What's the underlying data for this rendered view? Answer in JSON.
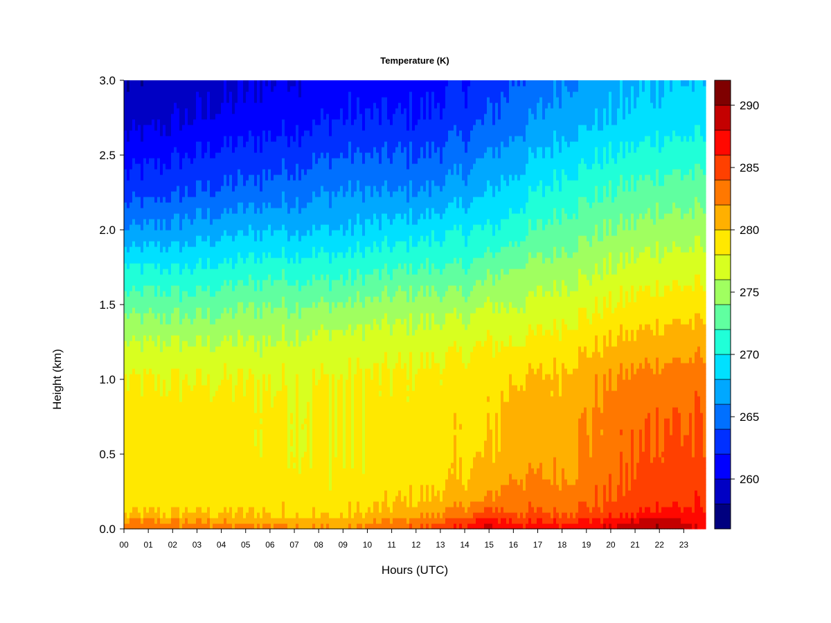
{
  "chart_data": {
    "type": "heatmap",
    "title": "Temperature (K)",
    "xlabel": "Hours (UTC)",
    "ylabel": "Height (km)",
    "xlim": [
      0,
      23.9
    ],
    "ylim": [
      0.0,
      3.0
    ],
    "x_ticks": [
      "00",
      "01",
      "02",
      "03",
      "04",
      "05",
      "06",
      "07",
      "08",
      "09",
      "10",
      "11",
      "12",
      "13",
      "14",
      "15",
      "16",
      "17",
      "18",
      "19",
      "20",
      "21",
      "22",
      "23"
    ],
    "y_ticks": [
      "0.0",
      "0.5",
      "1.0",
      "1.5",
      "2.0",
      "2.5",
      "3.0"
    ],
    "y_tick_values": [
      0.0,
      0.5,
      1.0,
      1.5,
      2.0,
      2.5,
      3.0
    ],
    "colorbar": {
      "label_values": [
        260,
        265,
        270,
        275,
        280,
        285,
        290
      ],
      "labels": [
        "260",
        "265",
        "270",
        "275",
        "280",
        "285",
        "290"
      ],
      "levels": [
        256,
        258,
        260,
        262,
        264,
        266,
        268,
        270,
        272,
        274,
        276,
        278,
        280,
        282,
        284,
        286,
        288,
        290,
        292
      ],
      "colors": [
        "#00007f",
        "#0000c4",
        "#0000ff",
        "#0030ff",
        "#0070ff",
        "#00a8ff",
        "#00e0ff",
        "#20ffd8",
        "#60ffa0",
        "#a0ff60",
        "#d8ff20",
        "#ffe800",
        "#ffb000",
        "#ff7800",
        "#ff4000",
        "#ff0800",
        "#c40000",
        "#7f0000"
      ]
    },
    "profiles": {
      "heights_km": [
        0.0,
        0.05,
        0.1,
        0.2,
        0.35,
        0.5,
        0.75,
        1.0,
        1.25,
        1.5,
        1.75,
        2.0,
        2.25,
        2.5,
        2.75,
        3.0
      ],
      "columns": [
        {
          "hour": 0,
          "temps": [
            283,
            282,
            280,
            279,
            279,
            279,
            279,
            278,
            276,
            273,
            270,
            266,
            263,
            261,
            259,
            258
          ]
        },
        {
          "hour": 3,
          "temps": [
            283,
            282,
            280,
            279,
            279,
            279,
            279,
            278,
            276,
            273,
            270,
            267,
            264,
            262,
            260,
            259
          ]
        },
        {
          "hour": 6,
          "temps": [
            283,
            281,
            280,
            279,
            279,
            278.5,
            278.5,
            278,
            276,
            274,
            271,
            268,
            265,
            263,
            261,
            260
          ]
        },
        {
          "hour": 9,
          "temps": [
            282,
            281,
            279.5,
            279,
            278.5,
            278,
            278,
            278,
            277,
            274,
            271,
            268,
            266,
            264,
            262,
            261
          ]
        },
        {
          "hour": 12,
          "temps": [
            284,
            283,
            281,
            280,
            279,
            279,
            279,
            278.5,
            277,
            275,
            272,
            269,
            266,
            264,
            262,
            261
          ]
        },
        {
          "hour": 14,
          "temps": [
            287,
            285,
            283,
            281,
            280,
            279.5,
            279.5,
            279,
            277.5,
            275,
            272,
            270,
            267,
            265,
            263,
            262
          ]
        },
        {
          "hour": 15,
          "temps": [
            289,
            287,
            285,
            282,
            281,
            280,
            279.5,
            279,
            278,
            276,
            273,
            270,
            268,
            266,
            264,
            263
          ]
        },
        {
          "hour": 16,
          "temps": [
            287,
            286,
            284,
            283,
            282,
            281,
            281,
            280,
            278,
            276,
            274,
            271,
            269,
            267,
            265,
            264
          ]
        },
        {
          "hour": 18,
          "temps": [
            287,
            286,
            284,
            283,
            282,
            281.5,
            281,
            280.5,
            279,
            277,
            275,
            273,
            271,
            269,
            267,
            266
          ]
        },
        {
          "hour": 20,
          "temps": [
            288,
            287,
            285,
            284,
            283.5,
            283,
            283,
            282,
            280,
            278,
            276,
            274,
            272,
            270,
            268,
            267
          ]
        },
        {
          "hour": 22,
          "temps": [
            291,
            289,
            287,
            285.5,
            285,
            284.5,
            284,
            283,
            281,
            279,
            277,
            275,
            273,
            271,
            269,
            268
          ]
        },
        {
          "hour": 23.9,
          "temps": [
            287,
            287,
            286,
            285.5,
            285,
            284,
            284,
            283,
            281,
            279,
            277,
            275,
            273,
            271,
            269,
            268
          ]
        }
      ]
    }
  }
}
